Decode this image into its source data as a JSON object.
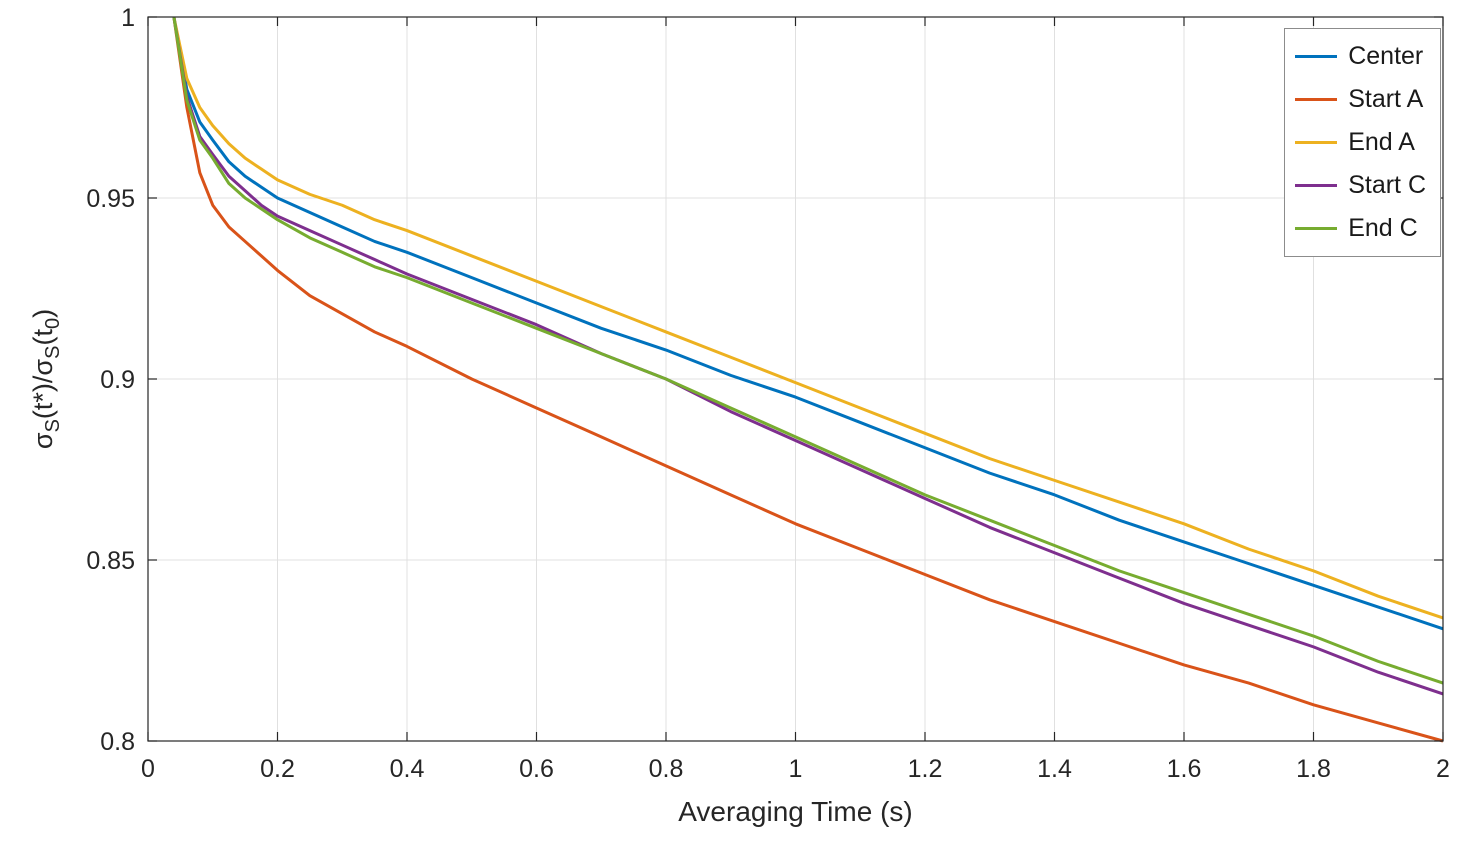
{
  "page": {
    "background": "#ffffff"
  },
  "chart_data": {
    "type": "line",
    "title": "",
    "xlabel": "Averaging Time (s)",
    "ylabel_segments": [
      {
        "text": "σ",
        "sub": false
      },
      {
        "text": "S",
        "sub": true
      },
      {
        "text": "(t*)/",
        "sub": false
      },
      {
        "text": "σ",
        "sub": false
      },
      {
        "text": "S",
        "sub": true
      },
      {
        "text": "(t",
        "sub": false
      },
      {
        "text": "0",
        "sub": true
      },
      {
        "text": ")",
        "sub": false
      }
    ],
    "xlim": [
      0,
      2
    ],
    "ylim": [
      0.8,
      1
    ],
    "xticks": [
      0,
      0.2,
      0.4,
      0.6,
      0.8,
      1,
      1.2,
      1.4,
      1.6,
      1.8,
      2
    ],
    "xtick_labels": [
      "0",
      "0.2",
      "0.4",
      "0.6",
      "0.8",
      "1",
      "1.2",
      "1.4",
      "1.6",
      "1.8",
      "2"
    ],
    "yticks": [
      0.8,
      0.85,
      0.9,
      0.95,
      1
    ],
    "ytick_labels": [
      "0.8",
      "0.85",
      "0.9",
      "0.95",
      "1"
    ],
    "grid": true,
    "legend_position": "top-right",
    "grid_color": "#e0e0e0",
    "axis_color": "#262626",
    "tick_label_color": "#262626",
    "line_width": 3,
    "x": [
      0.04,
      0.06,
      0.08,
      0.1,
      0.125,
      0.15,
      0.175,
      0.2,
      0.25,
      0.3,
      0.35,
      0.4,
      0.5,
      0.6,
      0.7,
      0.8,
      0.9,
      1.0,
      1.1,
      1.2,
      1.3,
      1.4,
      1.5,
      1.6,
      1.7,
      1.8,
      1.9,
      2.0
    ],
    "series": [
      {
        "name": "Center",
        "color": "#0072BD",
        "values": [
          1.0,
          0.98,
          0.971,
          0.966,
          0.96,
          0.956,
          0.953,
          0.95,
          0.946,
          0.942,
          0.938,
          0.935,
          0.928,
          0.921,
          0.914,
          0.908,
          0.901,
          0.895,
          0.888,
          0.881,
          0.874,
          0.868,
          0.861,
          0.855,
          0.849,
          0.843,
          0.837,
          0.831
        ]
      },
      {
        "name": "Start A",
        "color": "#D95319",
        "values": [
          1.0,
          0.975,
          0.957,
          0.948,
          0.942,
          0.938,
          0.934,
          0.93,
          0.923,
          0.918,
          0.913,
          0.909,
          0.9,
          0.892,
          0.884,
          0.876,
          0.868,
          0.86,
          0.853,
          0.846,
          0.839,
          0.833,
          0.827,
          0.821,
          0.816,
          0.81,
          0.805,
          0.8
        ]
      },
      {
        "name": "End A",
        "color": "#EDB120",
        "values": [
          1.0,
          0.983,
          0.975,
          0.97,
          0.965,
          0.961,
          0.958,
          0.955,
          0.951,
          0.948,
          0.944,
          0.941,
          0.934,
          0.927,
          0.92,
          0.913,
          0.906,
          0.899,
          0.892,
          0.885,
          0.878,
          0.872,
          0.866,
          0.86,
          0.853,
          0.847,
          0.84,
          0.834
        ]
      },
      {
        "name": "Start C",
        "color": "#7E2F8E",
        "values": [
          1.0,
          0.978,
          0.967,
          0.962,
          0.956,
          0.952,
          0.948,
          0.945,
          0.941,
          0.937,
          0.933,
          0.929,
          0.922,
          0.915,
          0.907,
          0.9,
          0.891,
          0.883,
          0.875,
          0.867,
          0.859,
          0.852,
          0.845,
          0.838,
          0.832,
          0.826,
          0.819,
          0.813
        ]
      },
      {
        "name": "End C",
        "color": "#77AC30",
        "values": [
          1.0,
          0.977,
          0.966,
          0.961,
          0.954,
          0.95,
          0.947,
          0.944,
          0.939,
          0.935,
          0.931,
          0.928,
          0.921,
          0.914,
          0.907,
          0.9,
          0.892,
          0.884,
          0.876,
          0.868,
          0.861,
          0.854,
          0.847,
          0.841,
          0.835,
          0.829,
          0.822,
          0.816
        ]
      }
    ]
  }
}
